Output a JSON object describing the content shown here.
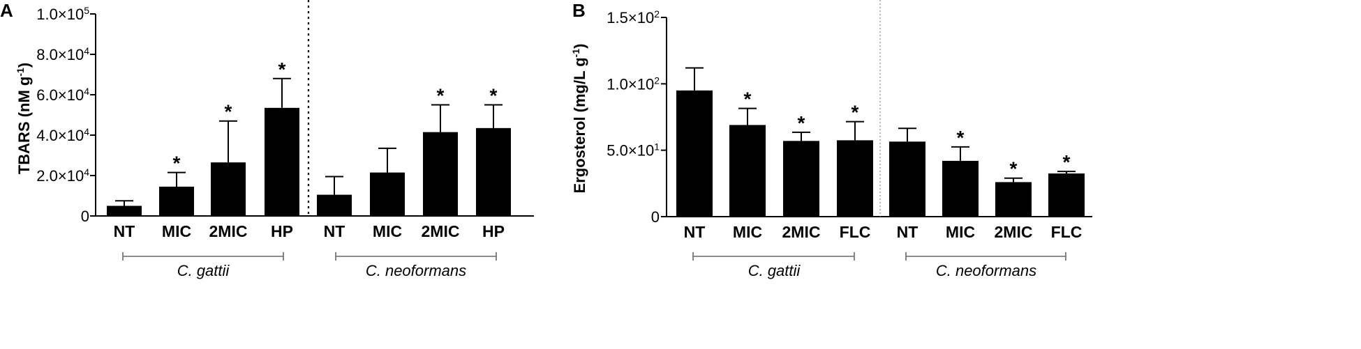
{
  "panels": [
    {
      "letter": "A",
      "ylabel_main": "TBARS (nM g",
      "ylabel_exp": "-1",
      "ylabel_close": ")",
      "yticks": [
        {
          "value": 0,
          "label": "0",
          "exp": ""
        },
        {
          "value": 20000,
          "label": "2.0×10",
          "exp": "4"
        },
        {
          "value": 40000,
          "label": "4.0×10",
          "exp": "4"
        },
        {
          "value": 60000,
          "label": "6.0×10",
          "exp": "4"
        },
        {
          "value": 80000,
          "label": "8.0×10",
          "exp": "4"
        },
        {
          "value": 100000,
          "label": "1.0×10",
          "exp": "5"
        }
      ],
      "groups": [
        "C. gattii",
        "C. neoformans"
      ],
      "star": "*"
    },
    {
      "letter": "B",
      "ylabel_main": "Ergosterol (mg/L g",
      "ylabel_exp": "-1",
      "ylabel_close": ")",
      "yticks": [
        {
          "value": 0,
          "label": "0",
          "exp": ""
        },
        {
          "value": 50,
          "label": "5.0×10",
          "exp": "1"
        },
        {
          "value": 100,
          "label": "1.0×10",
          "exp": "2"
        },
        {
          "value": 150,
          "label": "1.5×10",
          "exp": "2"
        }
      ],
      "groups": [
        "C. gattii",
        "C. neoformans"
      ],
      "star": "*"
    }
  ],
  "chart_data": [
    {
      "type": "bar",
      "ylabel": "TBARS (nM g-1)",
      "ylim": [
        0,
        100000
      ],
      "categories": [
        "NT",
        "MIC",
        "2MIC",
        "HP",
        "NT",
        "MIC",
        "2MIC",
        "HP"
      ],
      "groups": [
        {
          "name": "C. gattii",
          "categories": [
            "NT",
            "MIC",
            "2MIC",
            "HP"
          ]
        },
        {
          "name": "C. neoformans",
          "categories": [
            "NT",
            "MIC",
            "2MIC",
            "HP"
          ]
        }
      ],
      "values": [
        5000,
        14500,
        26500,
        53500,
        10500,
        21500,
        41500,
        43500
      ],
      "error_upper": [
        7500,
        21500,
        47000,
        68000,
        19500,
        33500,
        55000,
        55000
      ],
      "significant": [
        false,
        true,
        true,
        true,
        false,
        false,
        true,
        true
      ],
      "grid": false,
      "colors": {
        "bar": "#000000",
        "divider": "#000000"
      }
    },
    {
      "type": "bar",
      "ylabel": "Ergosterol (mg/L g-1)",
      "ylim": [
        0,
        150
      ],
      "categories": [
        "NT",
        "MIC",
        "2MIC",
        "FLC",
        "NT",
        "MIC",
        "2MIC",
        "FLC"
      ],
      "groups": [
        {
          "name": "C. gattii",
          "categories": [
            "NT",
            "MIC",
            "2MIC",
            "FLC"
          ]
        },
        {
          "name": "C. neoformans",
          "categories": [
            "NT",
            "MIC",
            "2MIC",
            "FLC"
          ]
        }
      ],
      "values": [
        95,
        69,
        57,
        57.5,
        56.5,
        42,
        26,
        32.5
      ],
      "error_upper": [
        112,
        81.5,
        63.5,
        71.5,
        66.5,
        52.5,
        29,
        34
      ],
      "significant": [
        false,
        true,
        true,
        true,
        false,
        true,
        true,
        true
      ],
      "grid": false,
      "colors": {
        "bar": "#000000",
        "divider": "#888888"
      }
    }
  ]
}
